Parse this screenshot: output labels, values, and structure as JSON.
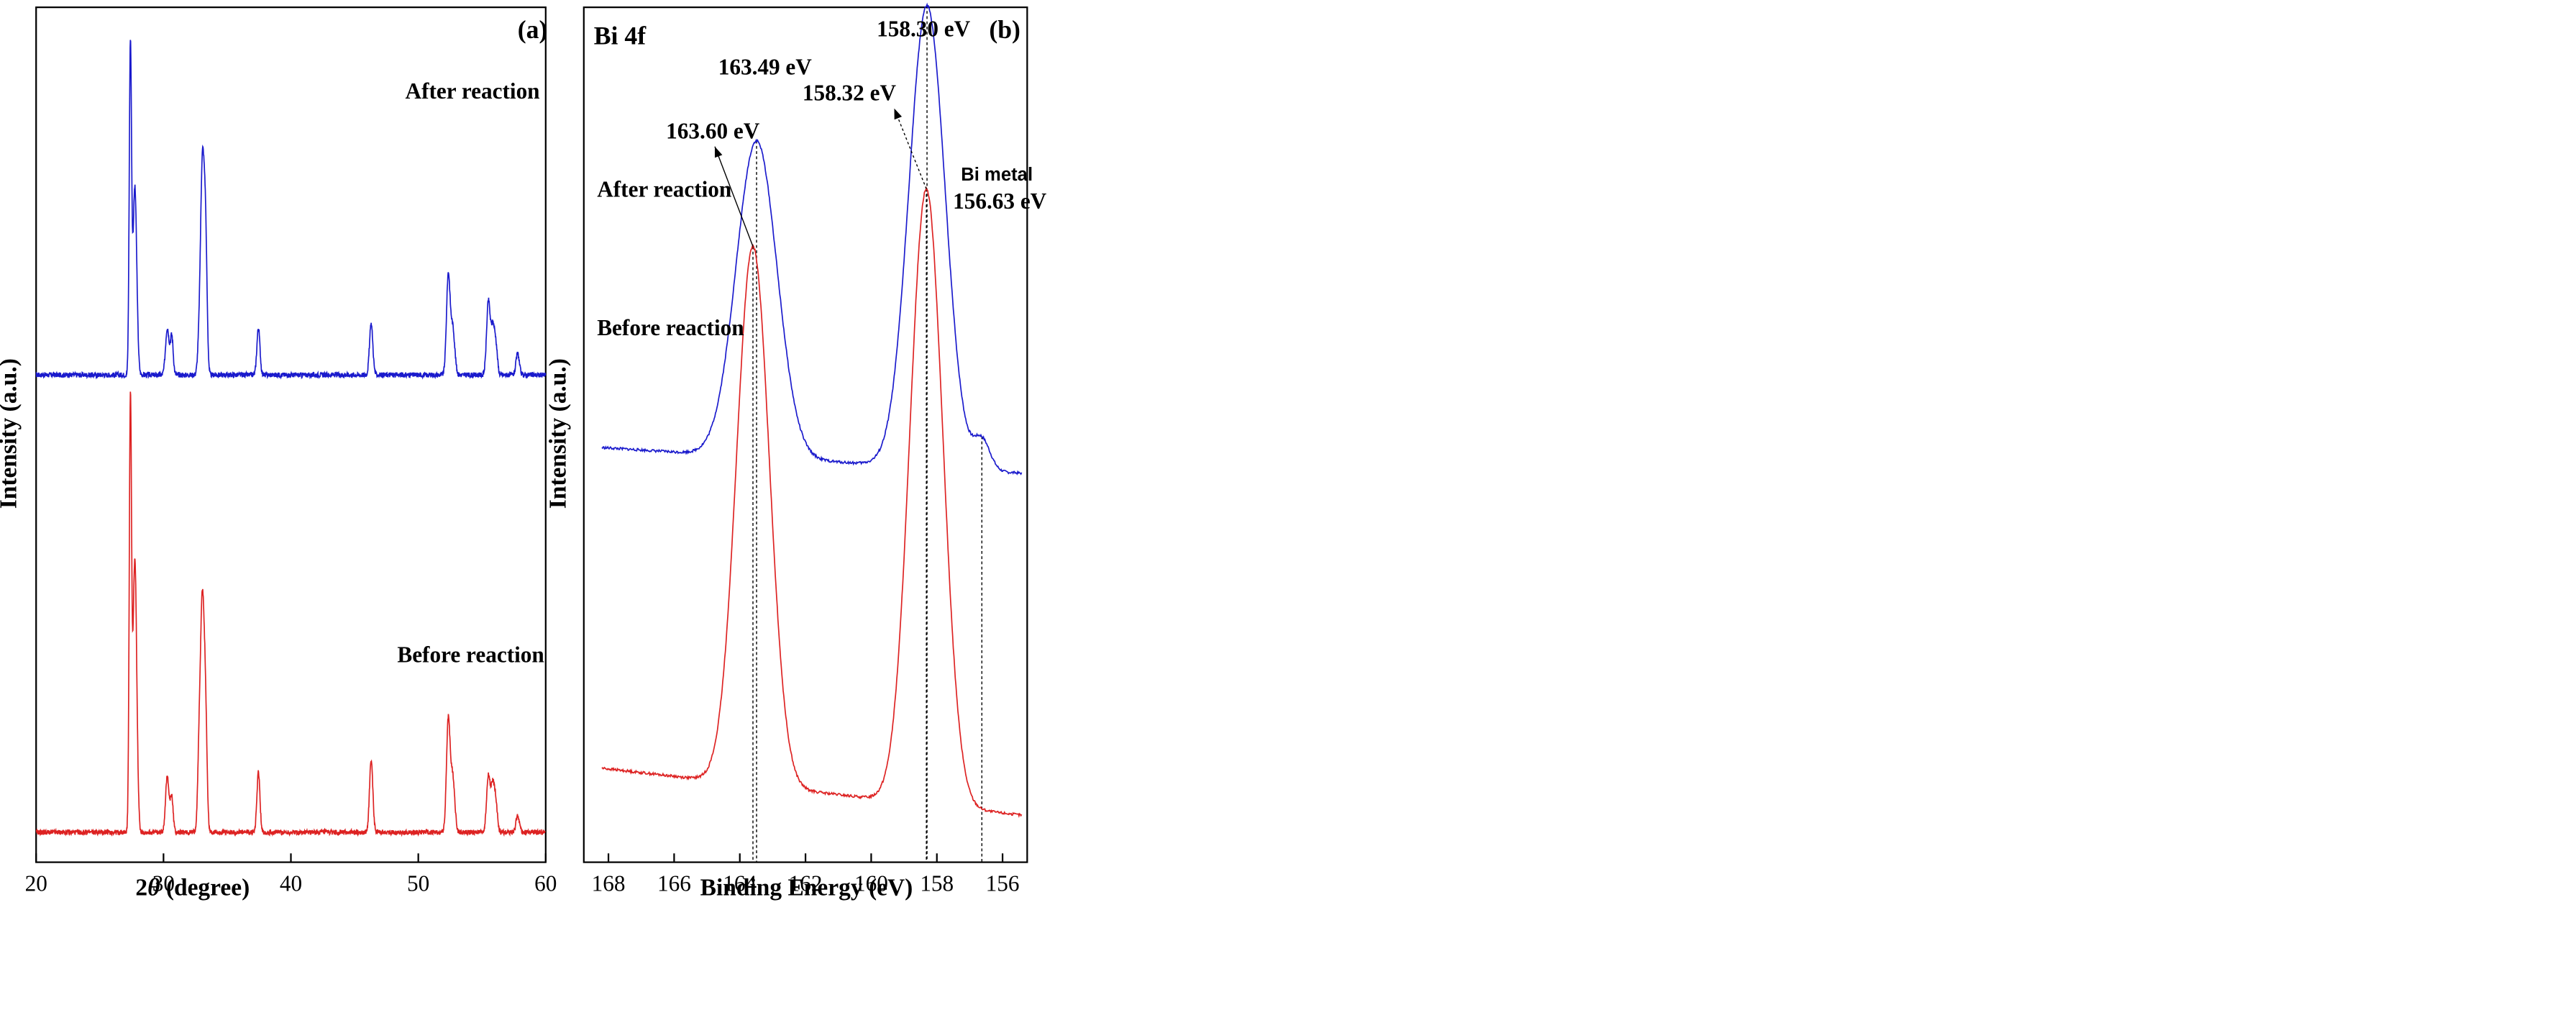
{
  "colors": {
    "after": "#1a1acc",
    "before": "#dd2222",
    "metal": "#d400d4",
    "axis": "#000000"
  },
  "chart_data": [
    {
      "type": "line",
      "panel_label": "(a)",
      "xlabel_prefix": "2",
      "xlabel_symbol": "θ",
      "xlabel_suffix": " (degree)",
      "ylabel": "Intensity (a.u.)",
      "xlim": [
        20,
        60
      ],
      "ylim": [
        0,
        10
      ],
      "xticks": [
        20,
        30,
        40,
        50,
        60
      ],
      "xtick_labels": [
        "20",
        "30",
        "40",
        "50",
        "60"
      ],
      "peaks": [
        {
          "x": 27.4,
          "w": 0.09
        },
        {
          "x": 27.75,
          "w": 0.15
        },
        {
          "x": 30.3,
          "w": 0.14
        },
        {
          "x": 30.65,
          "w": 0.11
        },
        {
          "x": 32.8,
          "w": 0.12
        },
        {
          "x": 33.05,
          "w": 0.14
        },
        {
          "x": 33.3,
          "w": 0.12
        },
        {
          "x": 37.45,
          "w": 0.12
        },
        {
          "x": 46.3,
          "w": 0.13
        },
        {
          "x": 52.35,
          "w": 0.14
        },
        {
          "x": 52.7,
          "w": 0.16
        },
        {
          "x": 55.5,
          "w": 0.14
        },
        {
          "x": 55.85,
          "w": 0.14
        },
        {
          "x": 56.1,
          "w": 0.12
        },
        {
          "x": 57.8,
          "w": 0.13
        }
      ],
      "series": [
        {
          "name": "After reaction",
          "label": "After reaction",
          "baseline": 5.7,
          "amps": [
            3.8,
            2.2,
            0.55,
            0.45,
            0.35,
            2.4,
            1.55,
            0.55,
            0.6,
            1.15,
            0.55,
            0.85,
            0.55,
            0.3,
            0.25
          ]
        },
        {
          "name": "Before reaction",
          "label": "Before reaction",
          "baseline": 0.35,
          "amps": [
            4.95,
            3.2,
            0.65,
            0.4,
            0.9,
            2.6,
            1.3,
            0.7,
            0.85,
            1.3,
            0.65,
            0.65,
            0.55,
            0.3,
            0.2
          ]
        }
      ]
    },
    {
      "type": "line",
      "panel_label": "(b)",
      "title": "Bi 4f",
      "xlabel": "Binding Energy (eV)",
      "ylabel": "Intensity (a.u.)",
      "xlim": [
        168.75,
        155.25
      ],
      "ylim": [
        0,
        10
      ],
      "xticks": [
        168,
        166,
        164,
        162,
        160,
        158,
        156
      ],
      "xtick_labels": [
        "168",
        "166",
        "164",
        "162",
        "160",
        "158",
        "156"
      ],
      "series": [
        {
          "name": "After reaction",
          "label": "After reaction",
          "left_range": [
            168.2,
            155.4
          ],
          "left_base": 4.85,
          "right_base": 4.55,
          "peaks": [
            {
              "center": 163.49,
              "amp": 3.7,
              "sigma": 0.62
            },
            {
              "center": 158.3,
              "amp": 5.4,
              "sigma": 0.55
            },
            {
              "center": 156.63,
              "amp": 0.35,
              "sigma": 0.25
            }
          ]
        },
        {
          "name": "Before reaction",
          "label": "Before reaction",
          "left_range": [
            168.2,
            155.4
          ],
          "left_base": 1.1,
          "right_base": 0.55,
          "peaks": [
            {
              "center": 163.6,
              "amp": 6.3,
              "sigma": 0.5
            },
            {
              "center": 158.32,
              "amp": 7.2,
              "sigma": 0.5
            }
          ]
        }
      ],
      "annotations": {
        "after_peak_1": "163.49 eV",
        "after_peak_2": "158.30 eV",
        "before_peak_1": "163.60 eV",
        "before_peak_2": "158.32 eV",
        "metal_peak": "156.63 eV",
        "metal_label": "Bi metal"
      },
      "guide_lines": [
        163.49,
        163.6,
        158.3,
        158.32,
        156.63
      ]
    }
  ]
}
